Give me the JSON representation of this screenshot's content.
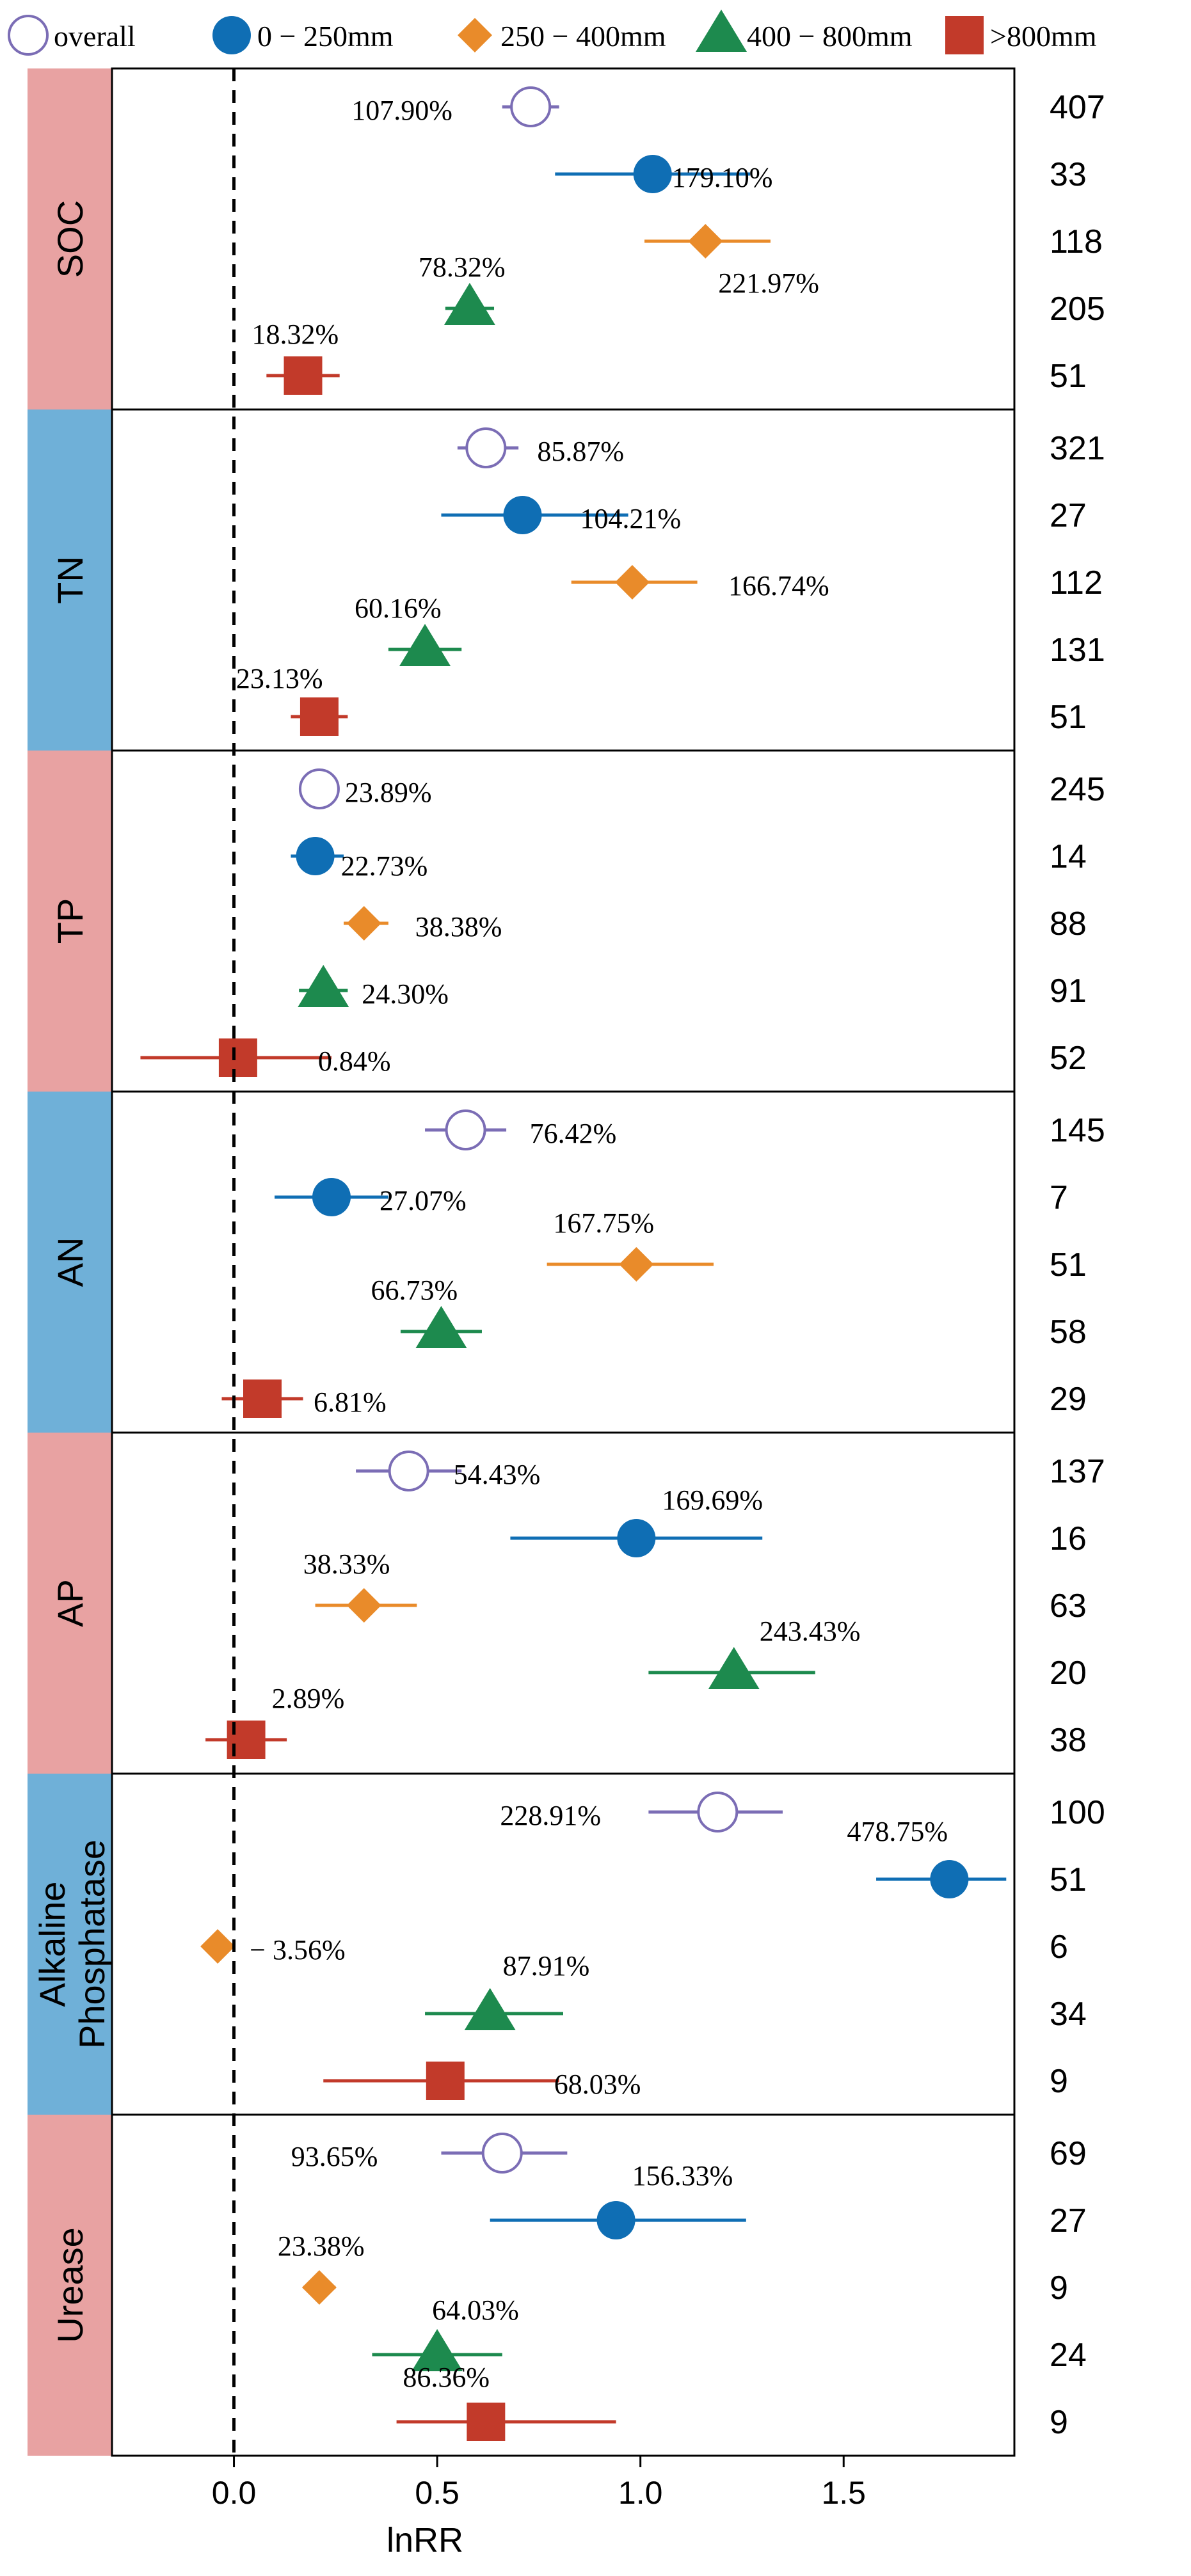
{
  "chart_data": {
    "type": "forest",
    "xlabel": "lnRR",
    "xlim": [
      -0.3,
      1.92
    ],
    "xticks": [
      0.0,
      0.5,
      1.0,
      1.5
    ],
    "xtick_labels": [
      "0.0",
      "0.5",
      "1.0",
      "1.5"
    ],
    "reference_line": 0,
    "legend": [
      {
        "key": "overall",
        "label": "overall",
        "marker": "open-circle",
        "color": "#7b6db5"
      },
      {
        "key": "g1",
        "label": "0 − 250mm",
        "marker": "circle",
        "color": "#0f6eb4"
      },
      {
        "key": "g2",
        "label": "250 − 400mm",
        "marker": "diamond",
        "color": "#e98b2a"
      },
      {
        "key": "g3",
        "label": "400 − 800mm",
        "marker": "triangle",
        "color": "#1d8a4e"
      },
      {
        "key": "g4",
        "label": ">800mm",
        "marker": "square",
        "color": "#c23a2a"
      }
    ],
    "panels": [
      {
        "name": "SOC",
        "strip_color": "#e8a2a2",
        "rows": [
          {
            "group": "overall",
            "est": 0.73,
            "lo": 0.66,
            "hi": 0.8,
            "label": "107.90%",
            "n": "407"
          },
          {
            "group": "g1",
            "est": 1.03,
            "lo": 0.79,
            "hi": 1.27,
            "label": "179.10%",
            "n": "33"
          },
          {
            "group": "g2",
            "est": 1.16,
            "lo": 1.01,
            "hi": 1.32,
            "label": "221.97%",
            "n": "118"
          },
          {
            "group": "g3",
            "est": 0.58,
            "lo": 0.52,
            "hi": 0.64,
            "label": "78.32%",
            "n": "205"
          },
          {
            "group": "g4",
            "est": 0.17,
            "lo": 0.08,
            "hi": 0.26,
            "label": "18.32%",
            "n": "51"
          }
        ]
      },
      {
        "name": "TN",
        "strip_color": "#6fb0d8",
        "rows": [
          {
            "group": "overall",
            "est": 0.62,
            "lo": 0.55,
            "hi": 0.7,
            "label": "85.87%",
            "n": "321"
          },
          {
            "group": "g1",
            "est": 0.71,
            "lo": 0.51,
            "hi": 0.97,
            "label": "104.21%",
            "n": "27"
          },
          {
            "group": "g2",
            "est": 0.98,
            "lo": 0.83,
            "hi": 1.14,
            "label": "166.74%",
            "n": "112"
          },
          {
            "group": "g3",
            "est": 0.47,
            "lo": 0.38,
            "hi": 0.56,
            "label": "60.16%",
            "n": "131"
          },
          {
            "group": "g4",
            "est": 0.21,
            "lo": 0.14,
            "hi": 0.28,
            "label": "23.13%",
            "n": "51"
          }
        ]
      },
      {
        "name": "TP",
        "strip_color": "#e8a2a2",
        "rows": [
          {
            "group": "overall",
            "est": 0.21,
            "lo": 0.18,
            "hi": 0.25,
            "label": "23.89%",
            "n": "245"
          },
          {
            "group": "g1",
            "est": 0.2,
            "lo": 0.14,
            "hi": 0.27,
            "label": "22.73%",
            "n": "14"
          },
          {
            "group": "g2",
            "est": 0.32,
            "lo": 0.27,
            "hi": 0.38,
            "label": "38.38%",
            "n": "88"
          },
          {
            "group": "g3",
            "est": 0.22,
            "lo": 0.16,
            "hi": 0.28,
            "label": "24.30%",
            "n": "91"
          },
          {
            "group": "g4",
            "est": 0.01,
            "lo": -0.23,
            "hi": 0.24,
            "label": "0.84%",
            "n": "52"
          }
        ]
      },
      {
        "name": "AN",
        "strip_color": "#6fb0d8",
        "rows": [
          {
            "group": "overall",
            "est": 0.57,
            "lo": 0.47,
            "hi": 0.67,
            "label": "76.42%",
            "n": "145"
          },
          {
            "group": "g1",
            "est": 0.24,
            "lo": 0.1,
            "hi": 0.38,
            "label": "27.07%",
            "n": "7"
          },
          {
            "group": "g2",
            "est": 0.99,
            "lo": 0.77,
            "hi": 1.18,
            "label": "167.75%",
            "n": "51"
          },
          {
            "group": "g3",
            "est": 0.51,
            "lo": 0.41,
            "hi": 0.61,
            "label": "66.73%",
            "n": "58"
          },
          {
            "group": "g4",
            "est": 0.07,
            "lo": -0.03,
            "hi": 0.17,
            "label": "6.81%",
            "n": "29"
          }
        ]
      },
      {
        "name": "AP",
        "strip_color": "#e8a2a2",
        "rows": [
          {
            "group": "overall",
            "est": 0.43,
            "lo": 0.3,
            "hi": 0.56,
            "label": "54.43%",
            "n": "137"
          },
          {
            "group": "g1",
            "est": 0.99,
            "lo": 0.68,
            "hi": 1.3,
            "label": "169.69%",
            "n": "16"
          },
          {
            "group": "g2",
            "est": 0.32,
            "lo": 0.2,
            "hi": 0.45,
            "label": "38.33%",
            "n": "63"
          },
          {
            "group": "g3",
            "est": 1.23,
            "lo": 1.02,
            "hi": 1.43,
            "label": "243.43%",
            "n": "20"
          },
          {
            "group": "g4",
            "est": 0.03,
            "lo": -0.07,
            "hi": 0.13,
            "label": "2.89%",
            "n": "38"
          }
        ]
      },
      {
        "name": "Alkaline\nPhosphatase",
        "strip_color": "#6fb0d8",
        "rows": [
          {
            "group": "overall",
            "est": 1.19,
            "lo": 1.02,
            "hi": 1.35,
            "label": "228.91%",
            "n": "100"
          },
          {
            "group": "g1",
            "est": 1.76,
            "lo": 1.58,
            "hi": 1.9,
            "label": "478.75%",
            "n": "51"
          },
          {
            "group": "g2",
            "est": -0.04,
            "lo": -0.07,
            "hi": 0.0,
            "label": "− 3.56%",
            "n": "6"
          },
          {
            "group": "g3",
            "est": 0.63,
            "lo": 0.47,
            "hi": 0.81,
            "label": "87.91%",
            "n": "34"
          },
          {
            "group": "g4",
            "est": 0.52,
            "lo": 0.22,
            "hi": 0.8,
            "label": "68.03%",
            "n": "9"
          }
        ]
      },
      {
        "name": "Urease",
        "strip_color": "#e8a2a2",
        "rows": [
          {
            "group": "overall",
            "est": 0.66,
            "lo": 0.51,
            "hi": 0.82,
            "label": "93.65%",
            "n": "69"
          },
          {
            "group": "g1",
            "est": 0.94,
            "lo": 0.63,
            "hi": 1.26,
            "label": "156.33%",
            "n": "27"
          },
          {
            "group": "g2",
            "est": 0.21,
            "lo": 0.17,
            "hi": 0.25,
            "label": "23.38%",
            "n": "9"
          },
          {
            "group": "g3",
            "est": 0.5,
            "lo": 0.34,
            "hi": 0.66,
            "label": "64.03%",
            "n": "24"
          },
          {
            "group": "g4",
            "est": 0.62,
            "lo": 0.4,
            "hi": 0.94,
            "label": "86.36%",
            "n": "9"
          }
        ]
      }
    ]
  }
}
